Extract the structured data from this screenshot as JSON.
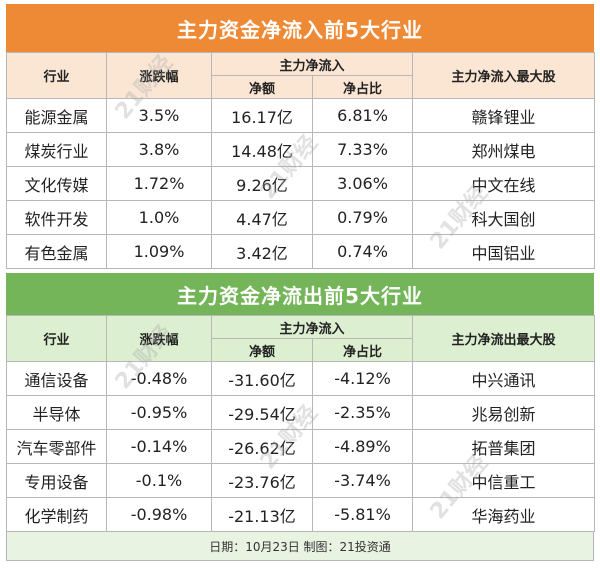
{
  "inflow": {
    "title": "主力资金净流入前5大行业",
    "headers": {
      "industry": "行业",
      "change": "涨跌幅",
      "group": "主力净流入",
      "net": "净额",
      "ratio": "净占比",
      "stock": "主力净流入最大股"
    },
    "rows": [
      {
        "industry": "能源金属",
        "change": "3.5%",
        "net": "16.17亿",
        "ratio": "6.81%",
        "stock": "赣锋锂业"
      },
      {
        "industry": "煤炭行业",
        "change": "3.8%",
        "net": "14.48亿",
        "ratio": "7.33%",
        "stock": "郑州煤电"
      },
      {
        "industry": "文化传媒",
        "change": "1.72%",
        "net": "9.26亿",
        "ratio": "3.06%",
        "stock": "中文在线"
      },
      {
        "industry": "软件开发",
        "change": "1.0%",
        "net": "4.47亿",
        "ratio": "0.79%",
        "stock": "科大国创"
      },
      {
        "industry": "有色金属",
        "change": "1.09%",
        "net": "3.42亿",
        "ratio": "0.74%",
        "stock": "中国铝业"
      }
    ]
  },
  "outflow": {
    "title": "主力资金净流出前5大行业",
    "headers": {
      "industry": "行业",
      "change": "涨跌幅",
      "group": "主力净流入",
      "net": "净额",
      "ratio": "净占比",
      "stock": "主力净流出最大股"
    },
    "rows": [
      {
        "industry": "通信设备",
        "change": "-0.48%",
        "net": "-31.60亿",
        "ratio": "-4.12%",
        "stock": "中兴通讯"
      },
      {
        "industry": "半导体",
        "change": "-0.95%",
        "net": "-29.54亿",
        "ratio": "-2.35%",
        "stock": "兆易创新"
      },
      {
        "industry": "汽车零部件",
        "change": "-0.14%",
        "net": "-26.62亿",
        "ratio": "-4.89%",
        "stock": "拓普集团"
      },
      {
        "industry": "专用设备",
        "change": "-0.1%",
        "net": "-23.76亿",
        "ratio": "-3.74%",
        "stock": "中信重工"
      },
      {
        "industry": "化学制药",
        "change": "-0.98%",
        "net": "-21.13亿",
        "ratio": "-5.81%",
        "stock": "华海药业"
      }
    ]
  },
  "footer": "日期：10月23日 制图：21投资通",
  "watermark": "21财经",
  "colors": {
    "inflow_accent": "#ee8a36",
    "outflow_accent": "#73b558"
  }
}
